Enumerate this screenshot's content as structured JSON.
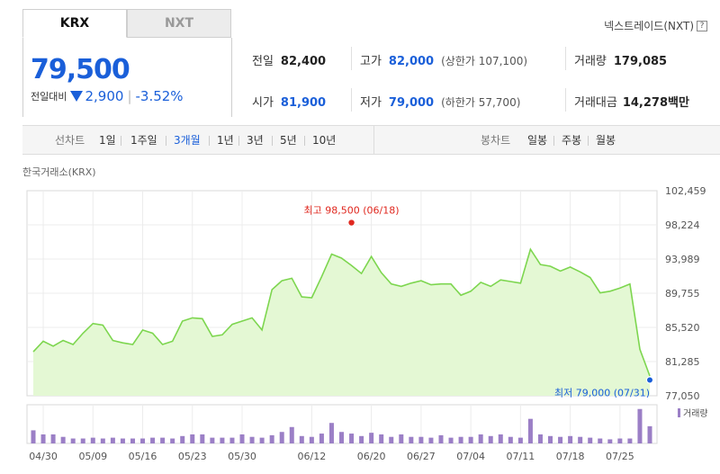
{
  "tabs": [
    {
      "label": "KRX"
    },
    {
      "label": "NXT"
    }
  ],
  "nxt_link": "넥스트레이드(NXT)",
  "help_glyph": "?",
  "price": {
    "current": "79,500",
    "change_label": "전일대비",
    "change": "2,900",
    "change_pct": "-3.52%"
  },
  "stats": {
    "prev_close": {
      "label": "전일",
      "value": "82,400"
    },
    "high": {
      "label": "고가",
      "value": "82,000",
      "sub": "(상한가 107,100)"
    },
    "volume": {
      "label": "거래량",
      "value": "179,085"
    },
    "open": {
      "label": "시가",
      "value": "81,900"
    },
    "low": {
      "label": "저가",
      "value": "79,000",
      "sub": "(하한가 57,700)"
    },
    "amount": {
      "label": "거래대금",
      "value": "14,278",
      "unit": "백만"
    }
  },
  "toolbar": {
    "line_label": "선차트",
    "periods": [
      "1일",
      "1주일",
      "3개월",
      "1년",
      "3년",
      "5년",
      "10년"
    ],
    "active_period": "3개월",
    "candle_label": "봉차트",
    "candles": [
      "일봉",
      "주봉",
      "월봉"
    ]
  },
  "source_label": "한국거래소(KRX)",
  "chart_data": {
    "type": "area",
    "y_ticks": [
      "102,459",
      "98,224",
      "93,989",
      "89,755",
      "85,520",
      "81,285",
      "77,050"
    ],
    "ylim": [
      77050,
      102459
    ],
    "x_ticks": [
      "04/30",
      "05/09",
      "05/16",
      "05/23",
      "05/30",
      "06/12",
      "06/20",
      "06/27",
      "07/04",
      "07/11",
      "07/18",
      "07/25"
    ],
    "x_tick_index": [
      1,
      6,
      11,
      16,
      21,
      28,
      34,
      39,
      44,
      49,
      54,
      59
    ],
    "values": [
      82500,
      83800,
      83200,
      83900,
      83400,
      84800,
      86000,
      85800,
      83900,
      83600,
      83400,
      85200,
      84800,
      83400,
      83800,
      86300,
      86700,
      86600,
      84400,
      84600,
      85900,
      86300,
      86700,
      85200,
      90200,
      91300,
      91600,
      89300,
      89200,
      91800,
      94600,
      94100,
      93200,
      92200,
      94300,
      92300,
      90900,
      90600,
      91000,
      91300,
      90800,
      90900,
      90900,
      89500,
      90000,
      91100,
      90600,
      91400,
      91200,
      91000,
      95200,
      93300,
      93100,
      92500,
      93000,
      92400,
      91700,
      89800,
      90000,
      90400,
      90900,
      82800,
      79500
    ],
    "volume_bar_heights": [
      16,
      11,
      11,
      8,
      6,
      6,
      7,
      6,
      7,
      6,
      6,
      6,
      7,
      7,
      6,
      9,
      11,
      11,
      7,
      7,
      7,
      11,
      8,
      7,
      10,
      14,
      20,
      9,
      8,
      12,
      25,
      14,
      12,
      9,
      13,
      11,
      8,
      11,
      8,
      8,
      7,
      10,
      7,
      8,
      8,
      11,
      9,
      11,
      8,
      7,
      30,
      11,
      9,
      8,
      9,
      8,
      7,
      6,
      5,
      6,
      6,
      42,
      21
    ],
    "max_annotation": {
      "label": "최고",
      "value": "98,500",
      "date": "(06/18)",
      "y": 98500
    },
    "min_annotation": {
      "label": "최저",
      "value": "79,000",
      "date": "(07/31)",
      "y": 79000
    },
    "volume_legend": "거래량",
    "colors": {
      "line": "#7dd64f",
      "fill": "#e4f8d4",
      "volume": "#9b7fc6",
      "max": "#e0281f",
      "min": "#1a5fd9"
    }
  }
}
